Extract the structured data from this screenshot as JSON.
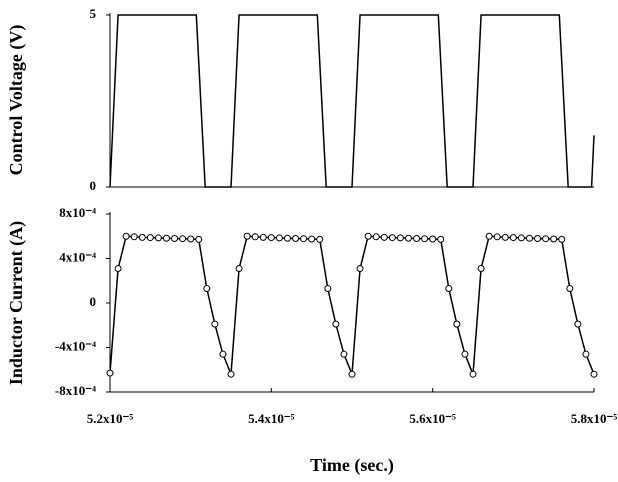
{
  "chart_data": [
    {
      "type": "line",
      "y_label": "Control Voltage (V)",
      "x": [
        5.2e-05,
        5.21e-05,
        5.307e-05,
        5.318e-05,
        5.35e-05,
        5.36e-05,
        5.457e-05,
        5.468e-05,
        5.5e-05,
        5.51e-05,
        5.607e-05,
        5.618e-05,
        5.65e-05,
        5.66e-05,
        5.757e-05,
        5.768e-05,
        5.797e-05,
        5.8e-05
      ],
      "series": [
        {
          "color": "#000000",
          "values": [
            0,
            5,
            5,
            0,
            0,
            5,
            5,
            0,
            0,
            5,
            5,
            0,
            0,
            5,
            5,
            0,
            0,
            1.5
          ]
        }
      ],
      "xlim": [
        5.2e-05,
        5.8e-05
      ],
      "ylim": [
        0,
        5
      ],
      "yticks": [
        0,
        5
      ]
    },
    {
      "type": "line",
      "y_label": "Inductor Current (A)",
      "x_label": "Time (sec.)",
      "x": [
        5.2e-05,
        5.21e-05,
        5.22e-05,
        5.23e-05,
        5.24e-05,
        5.25e-05,
        5.26e-05,
        5.27e-05,
        5.28e-05,
        5.29e-05,
        5.3e-05,
        5.31e-05,
        5.32e-05,
        5.33e-05,
        5.34e-05,
        5.35e-05,
        5.36e-05,
        5.37e-05,
        5.38e-05,
        5.39e-05,
        5.4e-05,
        5.41e-05,
        5.42e-05,
        5.43e-05,
        5.44e-05,
        5.45e-05,
        5.46e-05,
        5.47e-05,
        5.48e-05,
        5.49e-05,
        5.5e-05,
        5.51e-05,
        5.52e-05,
        5.53e-05,
        5.54e-05,
        5.55e-05,
        5.56e-05,
        5.57e-05,
        5.58e-05,
        5.59e-05,
        5.6e-05,
        5.61e-05,
        5.62e-05,
        5.63e-05,
        5.64e-05,
        5.65e-05,
        5.66e-05,
        5.67e-05,
        5.68e-05,
        5.69e-05,
        5.7e-05,
        5.71e-05,
        5.72e-05,
        5.73e-05,
        5.74e-05,
        5.75e-05,
        5.76e-05,
        5.77e-05,
        5.78e-05,
        5.79e-05,
        5.8e-05
      ],
      "series": [
        {
          "color": "#000000",
          "marker": "circle",
          "values": [
            -0.00063,
            0.00031,
            0.0006,
            0.000595,
            0.00059,
            0.000588,
            0.000585,
            0.000582,
            0.00058,
            0.000578,
            0.000575,
            0.000572,
            0.00013,
            -0.00019,
            -0.00046,
            -0.00064,
            0.00031,
            0.0006,
            0.000595,
            0.00059,
            0.000588,
            0.000585,
            0.000582,
            0.00058,
            0.000578,
            0.000575,
            0.000572,
            0.00013,
            -0.00019,
            -0.00046,
            -0.00064,
            0.00031,
            0.0006,
            0.000595,
            0.00059,
            0.000588,
            0.000585,
            0.000582,
            0.00058,
            0.000578,
            0.000575,
            0.000572,
            0.00013,
            -0.00019,
            -0.00046,
            -0.00064,
            0.00031,
            0.0006,
            0.000595,
            0.00059,
            0.000588,
            0.000585,
            0.000582,
            0.00058,
            0.000578,
            0.000575,
            0.000572,
            0.00013,
            -0.00019,
            -0.00046,
            -0.00064
          ]
        }
      ],
      "xlim": [
        5.2e-05,
        5.8e-05
      ],
      "xticks": [
        {
          "value": 5.2e-05,
          "label": "5.2x10⁻⁵"
        },
        {
          "value": 5.4e-05,
          "label": "5.4x10⁻⁵"
        },
        {
          "value": 5.6e-05,
          "label": "5.6x10⁻⁵"
        },
        {
          "value": 5.8e-05,
          "label": "5.8x10⁻⁵"
        }
      ],
      "ylim": [
        -0.0008,
        0.0008
      ],
      "yticks": [
        {
          "value": -0.0008,
          "label": "-8x10⁻⁴"
        },
        {
          "value": -0.0004,
          "label": "-4x10⁻⁴"
        },
        0,
        {
          "value": 0.0004,
          "label": "4x10⁻⁴"
        },
        {
          "value": 0.0008,
          "label": "8x10⁻⁴"
        }
      ]
    }
  ]
}
